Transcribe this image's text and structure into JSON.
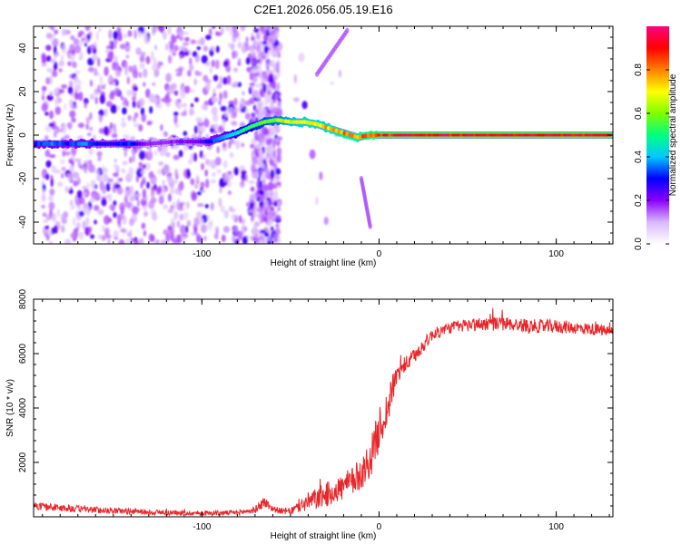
{
  "title": "C2E1.2026.056.05.19.E16",
  "colors": {
    "background": "#ffffff",
    "snr_line": "#e8262a",
    "scatter_fill": "#9a6bff",
    "scatter_dense": "#5a1ee0",
    "axis": "#000000"
  },
  "chart_data": [
    {
      "type": "heatmap",
      "name": "spectrogram",
      "title": "C2E1.2026.056.05.19.E16",
      "xlabel": "Height of straight line (km)",
      "ylabel": "Frequency (Hz)",
      "xlim": [
        -195,
        132
      ],
      "ylim": [
        -50,
        50
      ],
      "xticks": [
        {
          "value": -100,
          "label": "-100"
        },
        {
          "value": 0,
          "label": "0"
        },
        {
          "value": 100,
          "label": "100"
        }
      ],
      "yticks": [
        {
          "value": 40,
          "label": "40"
        },
        {
          "value": 20,
          "label": "20"
        },
        {
          "value": 0,
          "label": "0"
        },
        {
          "value": -20,
          "label": "-20"
        },
        {
          "value": -40,
          "label": "-40"
        }
      ],
      "colorbar": {
        "label": "Normalized spectral amplitude",
        "range": [
          0,
          1
        ],
        "ticks": [
          {
            "value": 0.0,
            "label": "0.0"
          },
          {
            "value": 0.2,
            "label": "0.2"
          },
          {
            "value": 0.4,
            "label": "0.4"
          },
          {
            "value": 0.6,
            "label": "0.6"
          },
          {
            "value": 0.8,
            "label": "0.8"
          }
        ],
        "stops": [
          "#ffffff",
          "#d9b8ff",
          "#8b00ff",
          "#0000ff",
          "#00c8ff",
          "#00ff80",
          "#80ff00",
          "#ffff00",
          "#ff8000",
          "#ff0000",
          "#ff0080"
        ]
      },
      "noise_regions": [
        {
          "x_start": -190,
          "x_end": -58,
          "density": 0.9
        },
        {
          "x_start": -58,
          "x_end": -20,
          "density": 0.04
        }
      ],
      "noise_bands": [
        {
          "x_start": -72,
          "x_end": -56,
          "density": 1.0
        }
      ],
      "ridge": [
        {
          "x": -195,
          "f": -4,
          "amp": 0.35
        },
        {
          "x": -185,
          "f": -4,
          "amp": 0.4
        },
        {
          "x": -175,
          "f": -4,
          "amp": 0.35
        },
        {
          "x": -165,
          "f": -4,
          "amp": 0.4
        },
        {
          "x": -158,
          "f": -4,
          "amp": 0.3
        },
        {
          "x": -150,
          "f": -4,
          "amp": 0.3
        },
        {
          "x": -142,
          "f": -4,
          "amp": 0.35
        },
        {
          "x": -130,
          "f": -4,
          "amp": 0.2
        },
        {
          "x": -115,
          "f": -3,
          "amp": 0.2
        },
        {
          "x": -100,
          "f": -3,
          "amp": 0.25
        },
        {
          "x": -95,
          "f": -3,
          "amp": 0.35
        },
        {
          "x": -88,
          "f": -1,
          "amp": 0.4
        },
        {
          "x": -80,
          "f": 1,
          "amp": 0.5
        },
        {
          "x": -72,
          "f": 4,
          "amp": 0.55
        },
        {
          "x": -65,
          "f": 6,
          "amp": 0.6
        },
        {
          "x": -58,
          "f": 7,
          "amp": 0.65
        },
        {
          "x": -50,
          "f": 6,
          "amp": 0.7
        },
        {
          "x": -42,
          "f": 6,
          "amp": 0.75
        },
        {
          "x": -35,
          "f": 5,
          "amp": 0.8
        },
        {
          "x": -28,
          "f": 3,
          "amp": 0.8
        },
        {
          "x": -20,
          "f": 1,
          "amp": 0.85
        },
        {
          "x": -12,
          "f": -1,
          "amp": 0.85
        },
        {
          "x": -5,
          "f": 0,
          "amp": 0.9
        },
        {
          "x": 0,
          "f": 0,
          "amp": 0.95
        },
        {
          "x": 20,
          "f": 0,
          "amp": 1.0
        },
        {
          "x": 60,
          "f": 0,
          "amp": 1.0
        },
        {
          "x": 100,
          "f": 0,
          "amp": 1.0
        },
        {
          "x": 132,
          "f": 0,
          "amp": 1.0
        }
      ],
      "faint_tracks": [
        {
          "x0": -35,
          "f0": 28,
          "x1": -18,
          "f1": 48
        },
        {
          "x0": -10,
          "f0": -20,
          "x1": -5,
          "f1": -42
        }
      ]
    },
    {
      "type": "line",
      "name": "snr",
      "xlabel": "Height of straight line (km)",
      "ylabel": "SNR (10 * v/v)",
      "xlim": [
        -195,
        132
      ],
      "ylim": [
        0,
        8000
      ],
      "xticks": [
        {
          "value": -100,
          "label": "-100"
        },
        {
          "value": 0,
          "label": "0"
        },
        {
          "value": 100,
          "label": "100"
        }
      ],
      "yticks": [
        {
          "value": 8000,
          "label": "8000"
        },
        {
          "value": 6000,
          "label": "6000"
        },
        {
          "value": 4000,
          "label": "4000"
        },
        {
          "value": 2000,
          "label": "2000"
        }
      ],
      "series": [
        {
          "name": "SNR",
          "color": "#e8262a",
          "x": [
            -195,
            -180,
            -160,
            -140,
            -120,
            -100,
            -80,
            -70,
            -65,
            -60,
            -55,
            -50,
            -40,
            -30,
            -20,
            -15,
            -10,
            -5,
            0,
            5,
            8,
            10,
            12,
            15,
            20,
            25,
            30,
            40,
            50,
            60,
            70,
            80,
            90,
            100,
            110,
            120,
            132
          ],
          "y": [
            400,
            330,
            250,
            200,
            150,
            130,
            150,
            250,
            550,
            300,
            200,
            200,
            550,
            800,
            1100,
            1300,
            1600,
            2100,
            3200,
            4000,
            4800,
            5200,
            5400,
            5600,
            5900,
            6300,
            6700,
            6950,
            7050,
            7100,
            7100,
            7050,
            7000,
            7000,
            6950,
            6900,
            6800
          ],
          "noise_amplitude": [
            140,
            140,
            120,
            110,
            100,
            90,
            90,
            120,
            220,
            120,
            110,
            130,
            350,
            450,
            500,
            550,
            600,
            700,
            800,
            700,
            500,
            400,
            350,
            300,
            280,
            250,
            220,
            220,
            250,
            260,
            260,
            250,
            250,
            250,
            230,
            220,
            200
          ]
        }
      ]
    }
  ]
}
